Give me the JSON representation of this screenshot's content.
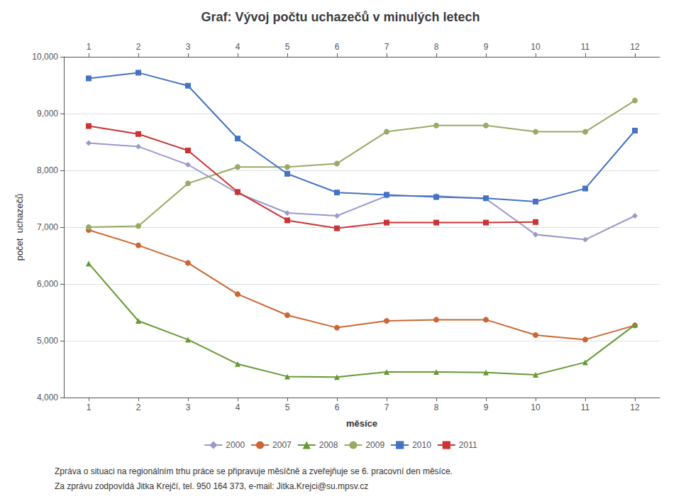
{
  "chart_data": {
    "type": "line",
    "title": "Graf: Vývoj počtu uchazečů v minulých letech",
    "x_label": "měsíce",
    "y_label": "počet  uchazečů",
    "annotations": [
      "Zpráva o situaci na regionálním trhu práce se připravuje měsíčně a zveřejňuje se 6. pracovní den měsíce.",
      "Za zprávu zodpovídá Jitka Krejčí, tel. 950 164 373, e-mail: Jitka.Krejci@su.mpsv.cz"
    ],
    "x": [
      1,
      2,
      3,
      4,
      5,
      6,
      7,
      8,
      9,
      10,
      11,
      12
    ],
    "xlim": [
      0.5,
      12.5
    ],
    "xticks": [
      1,
      2,
      3,
      4,
      5,
      6,
      7,
      8,
      9,
      10,
      11,
      12
    ],
    "ylim": [
      4000,
      10000
    ],
    "yticks": [
      4000,
      5000,
      6000,
      7000,
      8000,
      9000,
      10000
    ],
    "grid": true,
    "legend": "bottom",
    "series": [
      {
        "name": "2000",
        "color": "#9999CC",
        "marker": "diamond",
        "values": [
          8480,
          8420,
          8100,
          7600,
          7250,
          7200,
          7550,
          7550,
          7500,
          6870,
          6780,
          7200
        ]
      },
      {
        "name": "2007",
        "color": "#CC6633",
        "marker": "circle",
        "values": [
          6950,
          6680,
          6370,
          5820,
          5450,
          5230,
          5350,
          5370,
          5370,
          5100,
          5020,
          5270
        ]
      },
      {
        "name": "2008",
        "color": "#669933",
        "marker": "triangle",
        "values": [
          6360,
          5350,
          5020,
          4590,
          4370,
          4360,
          4450,
          4450,
          4440,
          4400,
          4620,
          5280
        ]
      },
      {
        "name": "2009",
        "color": "#99AA66",
        "marker": "circle",
        "values": [
          7000,
          7020,
          7770,
          8060,
          8060,
          8120,
          8680,
          8790,
          8790,
          8680,
          8680,
          9230
        ]
      },
      {
        "name": "2010",
        "color": "#4472C4",
        "marker": "square",
        "values": [
          9620,
          9720,
          9490,
          8560,
          7940,
          7610,
          7570,
          7530,
          7510,
          7450,
          7680,
          8700
        ]
      },
      {
        "name": "2011",
        "color": "#CC3333",
        "marker": "square",
        "values": [
          8780,
          8640,
          8350,
          7620,
          7120,
          6980,
          7080,
          7080,
          7080,
          7090,
          null,
          null
        ]
      }
    ]
  }
}
